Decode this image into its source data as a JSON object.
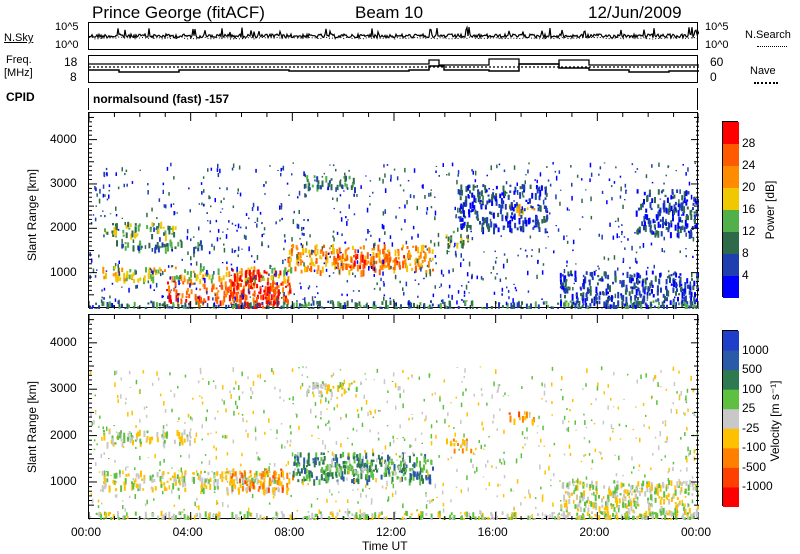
{
  "header": {
    "site": "Prince George (fitACF)",
    "beam": "Beam 10",
    "date": "12/Jun/2009"
  },
  "noise_panel": {
    "left_label": "N.Sky",
    "right_label": "N.Search",
    "y_top": "10^5",
    "y_bottom": "10^0"
  },
  "freq_panel": {
    "left_label_line1": "Freq.",
    "left_label_line2": "[MHz]",
    "left_ticks": [
      "18",
      "8"
    ],
    "right_ticks": [
      "60",
      "0"
    ],
    "right_label": "Nave"
  },
  "cpid": {
    "label": "CPID",
    "value": "normalsound (fast) -157"
  },
  "chart_data": [
    {
      "type": "heatmap",
      "name": "power",
      "ylabel": "Slant Range [km]",
      "ylim": [
        180,
        4600
      ],
      "y_ticks": [
        1000,
        2000,
        3000,
        4000
      ],
      "x_ticks": [
        "00:00",
        "04:00",
        "08:00",
        "12:00",
        "16:00",
        "20:00",
        "00:00"
      ],
      "xlim_hours": [
        0,
        24
      ],
      "colorbar": {
        "label": "Power [dB]",
        "ticks": [
          "4",
          "8",
          "12",
          "16",
          "20",
          "24",
          "28"
        ],
        "colors": [
          "#0000ff",
          "#1f3fb0",
          "#2e6a4a",
          "#52b04a",
          "#f0c800",
          "#ff8c00",
          "#ff5a00",
          "#ff0000"
        ]
      },
      "echo_regions": [
        {
          "t0": 0.5,
          "t1": 3.5,
          "r0": 1850,
          "r1": 2150,
          "level": 3
        },
        {
          "t0": 1.0,
          "t1": 4.5,
          "r0": 1550,
          "r1": 1750,
          "level": 2
        },
        {
          "t0": 0.5,
          "t1": 8.0,
          "r0": 850,
          "r1": 1150,
          "level": 4
        },
        {
          "t0": 3.0,
          "t1": 8.0,
          "r0": 350,
          "r1": 850,
          "level": 6
        },
        {
          "t0": 5.5,
          "t1": 7.5,
          "r0": 200,
          "r1": 1100,
          "level": 7
        },
        {
          "t0": 7.8,
          "t1": 13.5,
          "r0": 1050,
          "r1": 1650,
          "level": 5
        },
        {
          "t0": 9.5,
          "t1": 12.5,
          "r0": 1150,
          "r1": 1450,
          "level": 6
        },
        {
          "t0": 8.5,
          "t1": 10.5,
          "r0": 2900,
          "r1": 3200,
          "level": 2
        },
        {
          "t0": 14.0,
          "t1": 15.0,
          "r0": 1650,
          "r1": 1950,
          "level": 3
        },
        {
          "t0": 16.5,
          "t1": 17.5,
          "r0": 2350,
          "r1": 2550,
          "level": 4
        },
        {
          "t0": 18.5,
          "t1": 24.0,
          "r0": 250,
          "r1": 1050,
          "level": 1
        },
        {
          "t0": 0.0,
          "t1": 24.0,
          "r0": 180,
          "r1": 380,
          "level": 2
        },
        {
          "t0": 21.5,
          "t1": 24.0,
          "r0": 1900,
          "r1": 2900,
          "level": 1
        },
        {
          "t0": 14.5,
          "t1": 18.0,
          "r0": 2000,
          "r1": 3000,
          "level": 1
        }
      ]
    },
    {
      "type": "heatmap",
      "name": "velocity",
      "ylabel": "Slant Range [km]",
      "ylim": [
        180,
        4600
      ],
      "y_ticks": [
        1000,
        2000,
        3000,
        4000
      ],
      "x_ticks": [
        "00:00",
        "04:00",
        "08:00",
        "12:00",
        "16:00",
        "20:00",
        "00:00"
      ],
      "xlim_hours": [
        0,
        24
      ],
      "xlabel": "Time UT",
      "colorbar": {
        "label": "Velocity [m s⁻¹]",
        "ticks": [
          "1000",
          "500",
          "100",
          "25",
          "-25",
          "-100",
          "-500",
          "-1000"
        ],
        "colors": [
          "#1f3fc8",
          "#2a5aa8",
          "#2e7a50",
          "#5ec040",
          "#c8c8c8",
          "#ffc000",
          "#ff8000",
          "#ff4000",
          "#ff0000"
        ]
      },
      "echo_regions": [
        {
          "t0": 0.5,
          "t1": 4.0,
          "r0": 1850,
          "r1": 2150,
          "level": 4
        },
        {
          "t0": 0.5,
          "t1": 7.5,
          "r0": 850,
          "r1": 1250,
          "level": 4
        },
        {
          "t0": 5.5,
          "t1": 8.0,
          "r0": 850,
          "r1": 1300,
          "level": 6
        },
        {
          "t0": 8.0,
          "t1": 13.5,
          "r0": 1050,
          "r1": 1650,
          "level": 2
        },
        {
          "t0": 9.0,
          "t1": 12.5,
          "r0": 1150,
          "r1": 1500,
          "level": 3
        },
        {
          "t0": 14.0,
          "t1": 15.0,
          "r0": 1700,
          "r1": 1950,
          "level": 5
        },
        {
          "t0": 16.5,
          "t1": 17.5,
          "r0": 2350,
          "r1": 2550,
          "level": 6
        },
        {
          "t0": 18.5,
          "t1": 24.0,
          "r0": 250,
          "r1": 1050,
          "level": 4
        },
        {
          "t0": 0.0,
          "t1": 24.0,
          "r0": 180,
          "r1": 380,
          "level": 4
        },
        {
          "t0": 8.5,
          "t1": 10.5,
          "r0": 2900,
          "r1": 3200,
          "level": 4
        }
      ]
    }
  ]
}
